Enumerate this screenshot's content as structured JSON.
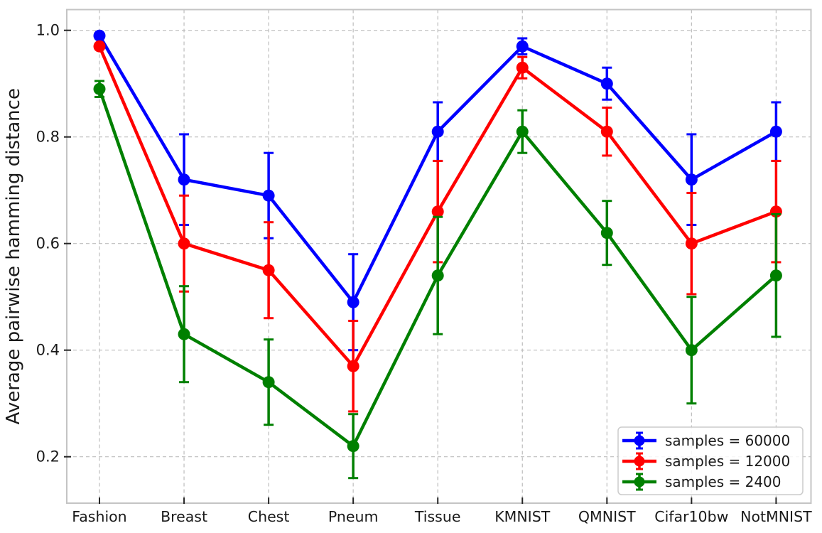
{
  "chart_data": {
    "type": "line",
    "title": "",
    "xlabel": "",
    "ylabel": "Average pairwise hamming distance",
    "grid": true,
    "legend_position": "lower right",
    "ylim": [
      0.113,
      1.039
    ],
    "categories": [
      "Fashion",
      "Breast",
      "Chest",
      "Pneum",
      "Tissue",
      "KMNIST",
      "QMNIST",
      "Cifar10bw",
      "NotMNIST"
    ],
    "yticks": {
      "values": [
        1.0,
        0.8,
        0.6,
        0.4,
        0.2
      ],
      "labels": [
        "1.0",
        "0.8",
        "0.6",
        "0.4",
        "0.2"
      ]
    },
    "series": [
      {
        "name": "samples = 60000",
        "color": "#0000ff",
        "values": [
          0.99,
          0.72,
          0.69,
          0.49,
          0.81,
          0.97,
          0.9,
          0.72,
          0.81
        ],
        "errors": [
          0.005,
          0.085,
          0.08,
          0.09,
          0.055,
          0.015,
          0.03,
          0.085,
          0.055
        ]
      },
      {
        "name": "samples = 12000",
        "color": "#ff0000",
        "values": [
          0.97,
          0.6,
          0.55,
          0.37,
          0.66,
          0.93,
          0.81,
          0.6,
          0.66
        ],
        "errors": [
          0.005,
          0.09,
          0.09,
          0.085,
          0.095,
          0.02,
          0.045,
          0.095,
          0.095
        ]
      },
      {
        "name": "samples = 2400",
        "color": "#008000",
        "values": [
          0.89,
          0.43,
          0.34,
          0.22,
          0.54,
          0.81,
          0.62,
          0.4,
          0.54
        ],
        "errors": [
          0.015,
          0.09,
          0.08,
          0.06,
          0.11,
          0.04,
          0.06,
          0.1,
          0.115
        ]
      }
    ],
    "style": {
      "grid_color": "#bdbdbd",
      "spine_color": "#c4c4c4",
      "tick_color": "#262626",
      "text_color": "#1a1a1a",
      "legend_border": "#cccccc",
      "legend_bg": "#ffffff"
    }
  }
}
